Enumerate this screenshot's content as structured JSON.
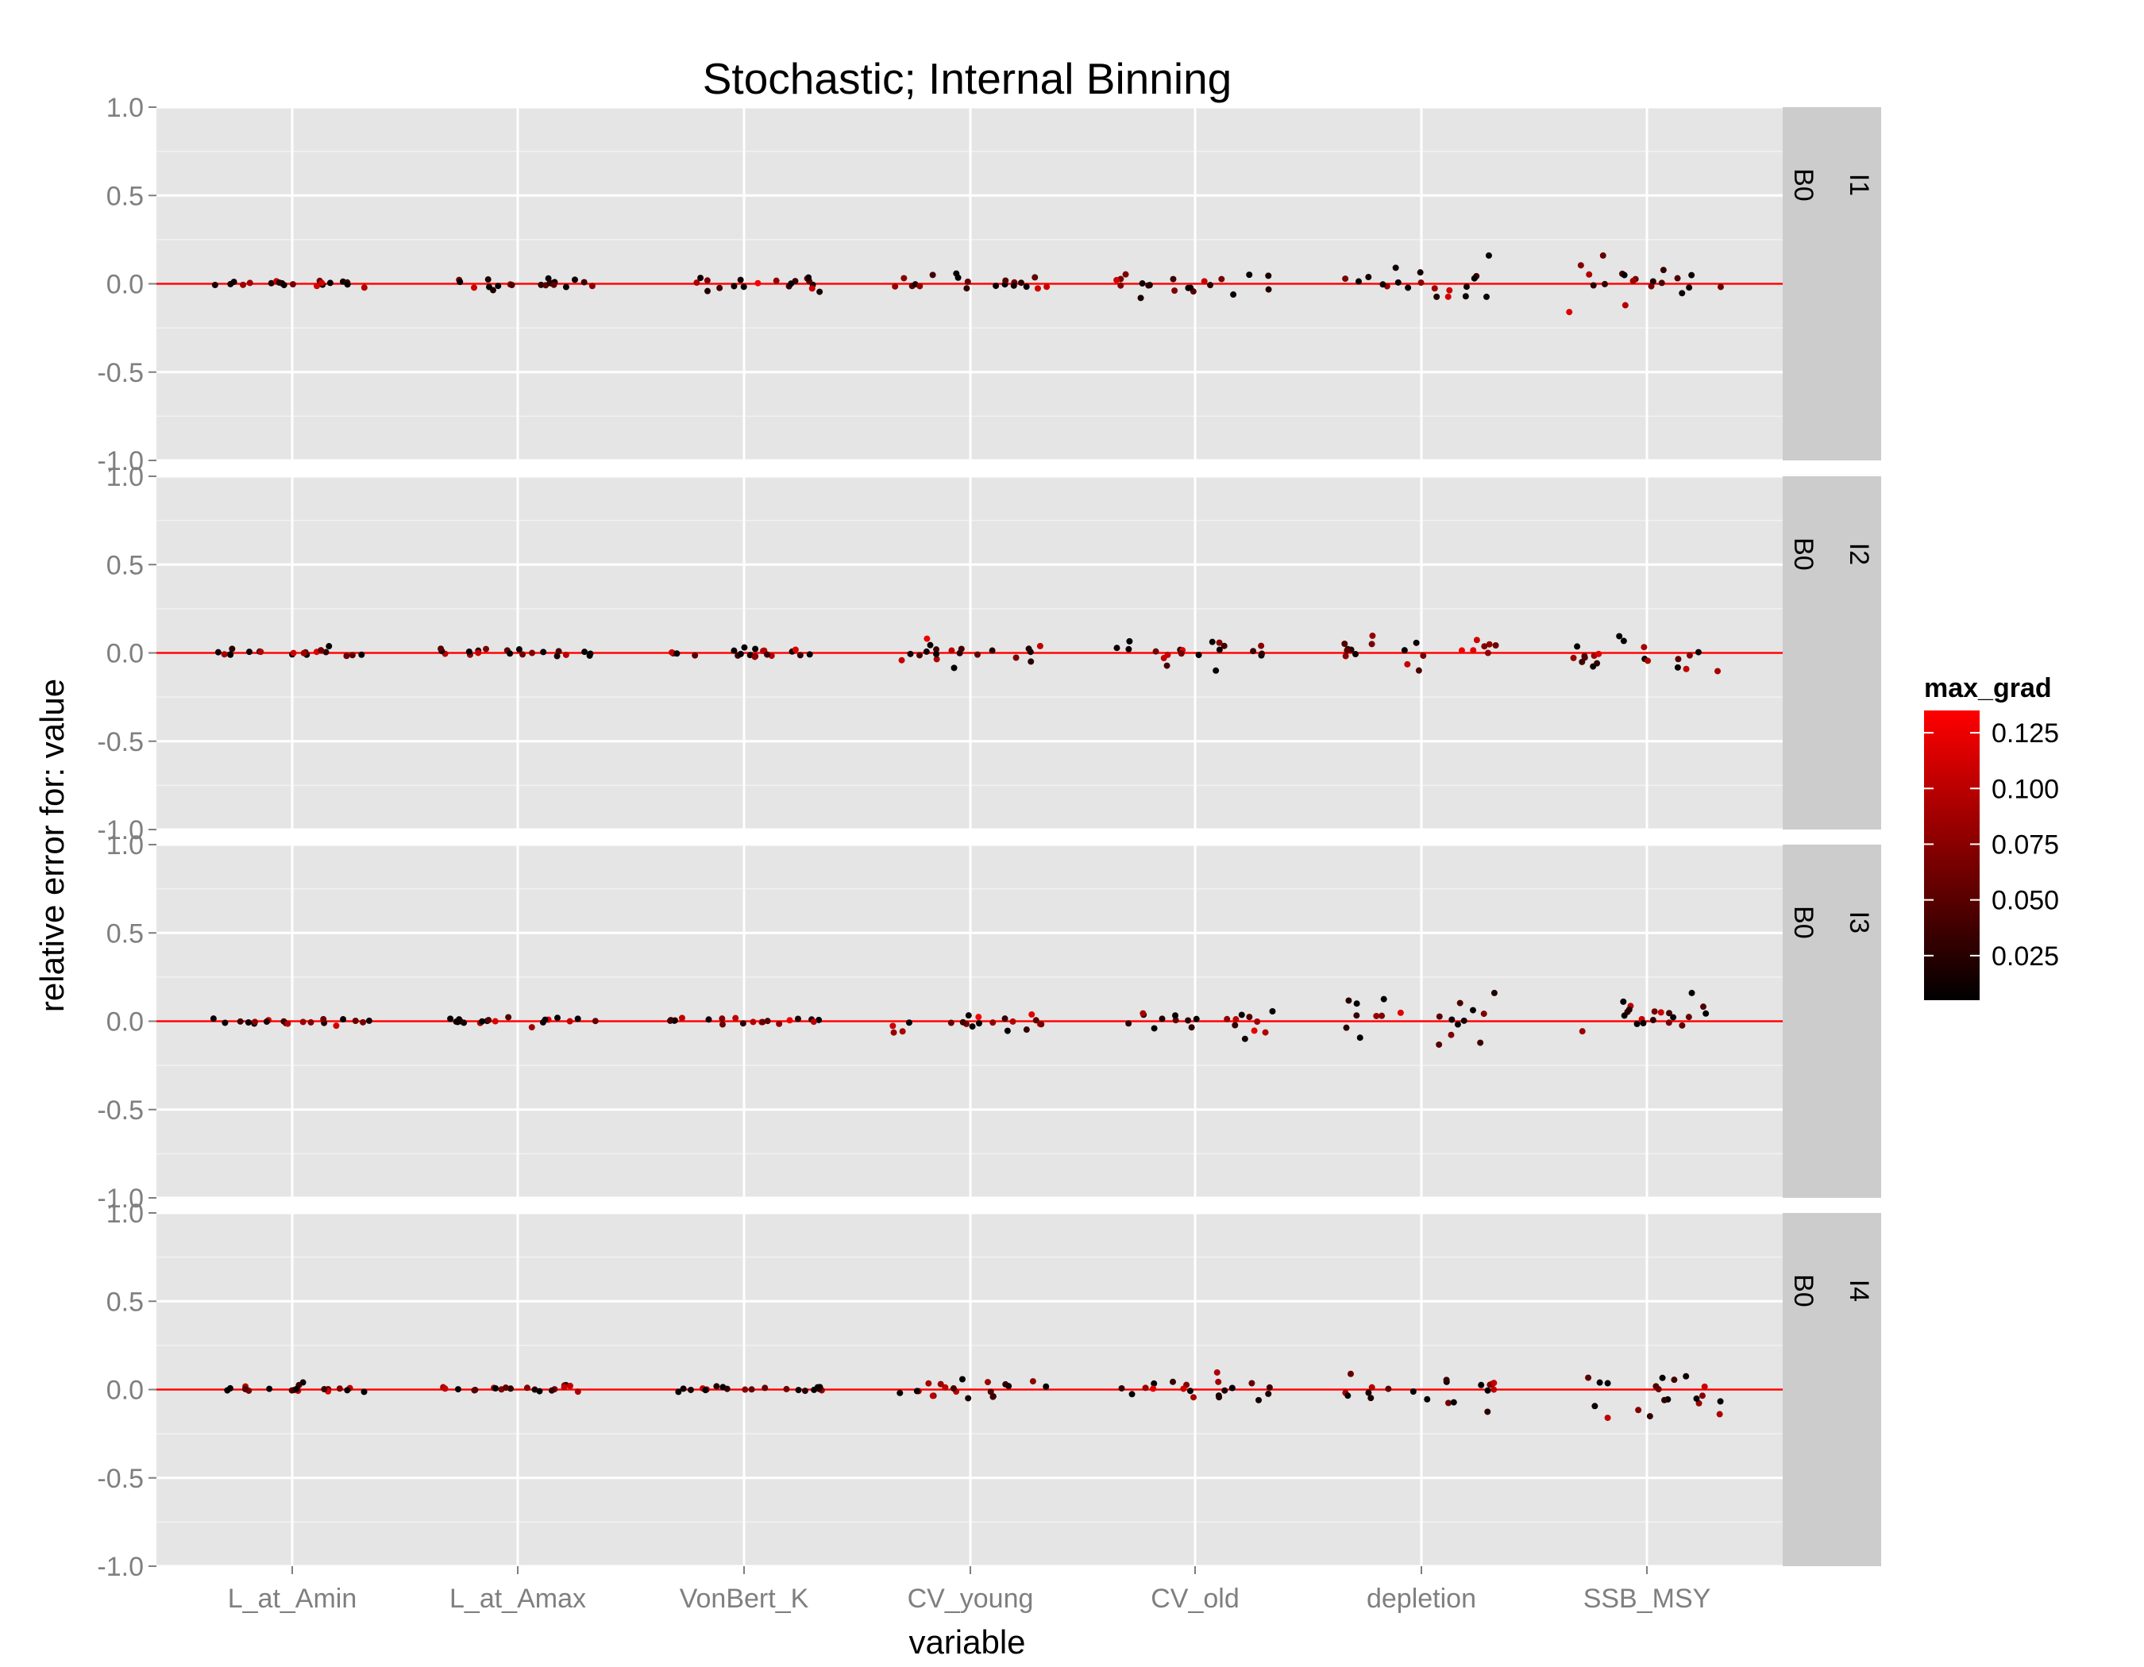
{
  "chart_data": {
    "type": "scatter",
    "title": "Stochastic; Internal Binning",
    "xlabel": "variable",
    "ylabel": "relative error for: value",
    "categories": [
      "L_at_Amin",
      "L_at_Amax",
      "VonBert_K",
      "CV_young",
      "CV_old",
      "depletion",
      "SSB_MSY"
    ],
    "ylim": [
      -1.0,
      1.0
    ],
    "yticks": [
      "1.0",
      "0.5",
      "0.0",
      "-0.5",
      "-1.0"
    ],
    "reference_line": {
      "y": 0,
      "color": "#ff0000"
    },
    "grid": true,
    "facets": [
      {
        "row": "I1",
        "col": "B0",
        "spread": [
          0.012,
          0.015,
          0.02,
          0.03,
          0.035,
          0.06,
          0.07
        ]
      },
      {
        "row": "I2",
        "col": "B0",
        "spread": [
          0.01,
          0.012,
          0.015,
          0.025,
          0.03,
          0.055,
          0.065
        ]
      },
      {
        "row": "I3",
        "col": "B0",
        "spread": [
          0.012,
          0.012,
          0.012,
          0.03,
          0.035,
          0.07,
          0.075
        ]
      },
      {
        "row": "I4",
        "col": "B0",
        "spread": [
          0.015,
          0.01,
          0.012,
          0.035,
          0.035,
          0.06,
          0.07
        ]
      }
    ],
    "points_per_category": 20,
    "color_scale": {
      "name": "max_grad",
      "low_color": "#000000",
      "high_color": "#ff0000",
      "min": 0.005,
      "max": 0.135,
      "breaks": [
        0.125,
        0.1,
        0.075,
        0.05,
        0.025
      ],
      "break_labels": [
        "0.125",
        "0.100",
        "0.075",
        "0.050",
        "0.025"
      ]
    },
    "legend_position": "right"
  }
}
